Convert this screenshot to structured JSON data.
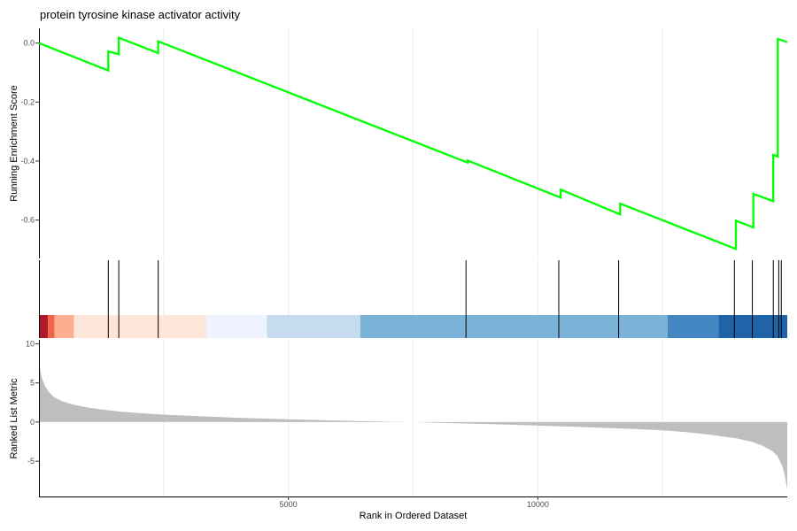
{
  "chart_data": {
    "type": "line",
    "title": "protein tyrosine kinase activator activity",
    "xlabel": "Rank in Ordered Dataset",
    "xlim": [
      0,
      15000
    ],
    "x_ticks": [
      5000,
      10000
    ],
    "x_tick_labels": [
      "5000",
      "10000"
    ],
    "grid": true,
    "panels": {
      "running_score": {
        "ylabel": "Running Enrichment Score",
        "ylim": [
          -0.73,
          0.05
        ],
        "y_ticks": [
          0.0,
          -0.2,
          -0.4,
          -0.6
        ],
        "y_tick_labels": [
          "0.0",
          "-0.2",
          "-0.4",
          "-0.6"
        ],
        "line_color": "#00ff00",
        "series": [
          {
            "x": [
              0,
              1390,
              1390,
              1600,
              1600,
              2390,
              2390,
              8590,
              8590,
              10460,
              10460,
              11650,
              11650,
              13970,
              13970,
              14320,
              14320,
              14720,
              14720,
              14810,
              14810,
              14880,
              14880,
              15000
            ],
            "y": [
              0.0,
              -0.093,
              -0.028,
              -0.038,
              0.018,
              -0.034,
              0.006,
              -0.405,
              -0.398,
              -0.524,
              -0.497,
              -0.581,
              -0.544,
              -0.698,
              -0.602,
              -0.625,
              -0.511,
              -0.536,
              -0.379,
              -0.385,
              0.014,
              0.01,
              0.01,
              0.003
            ]
          }
        ]
      },
      "hits": {
        "positions": [
          1390,
          1600,
          2390,
          8560,
          10420,
          11620,
          13940,
          14300,
          14720,
          14830,
          14880
        ],
        "color_bands": [
          {
            "start": 0,
            "end": 180,
            "color": "#b2182b"
          },
          {
            "start": 180,
            "end": 310,
            "color": "#ef6548"
          },
          {
            "start": 310,
            "end": 700,
            "color": "#fcae91"
          },
          {
            "start": 700,
            "end": 3360,
            "color": "#fee5d9"
          },
          {
            "start": 3360,
            "end": 4570,
            "color": "#eff3ff"
          },
          {
            "start": 4570,
            "end": 6440,
            "color": "#c6dbef"
          },
          {
            "start": 6440,
            "end": 12600,
            "color": "#7bb3d8"
          },
          {
            "start": 12600,
            "end": 13620,
            "color": "#4287c2"
          },
          {
            "start": 13620,
            "end": 15000,
            "color": "#1f63a8"
          }
        ]
      },
      "ranked_metric": {
        "ylabel": "Ranked List Metric",
        "ylim": [
          -9.5,
          10.5
        ],
        "y_ticks": [
          10,
          5,
          0,
          -5
        ],
        "y_tick_labels": [
          "10",
          "5",
          "0",
          "-5"
        ],
        "fill_color": "#bebebe",
        "x": [
          0,
          20,
          60,
          120,
          200,
          300,
          450,
          650,
          900,
          1200,
          1600,
          2000,
          2500,
          3000,
          4000,
          5000,
          6000,
          7000,
          7500,
          8000,
          9000,
          10000,
          11000,
          12000,
          12500,
          13000,
          13500,
          14000,
          14300,
          14500,
          14700,
          14800,
          14900,
          14950,
          15000
        ],
        "values": [
          7.8,
          6.8,
          5.6,
          4.6,
          3.8,
          3.2,
          2.7,
          2.3,
          1.95,
          1.65,
          1.35,
          1.15,
          0.95,
          0.8,
          0.55,
          0.35,
          0.2,
          0.05,
          0.0,
          -0.1,
          -0.25,
          -0.45,
          -0.65,
          -0.9,
          -1.05,
          -1.3,
          -1.65,
          -2.1,
          -2.55,
          -3.0,
          -3.7,
          -4.3,
          -5.6,
          -6.8,
          -8.6
        ]
      }
    }
  }
}
